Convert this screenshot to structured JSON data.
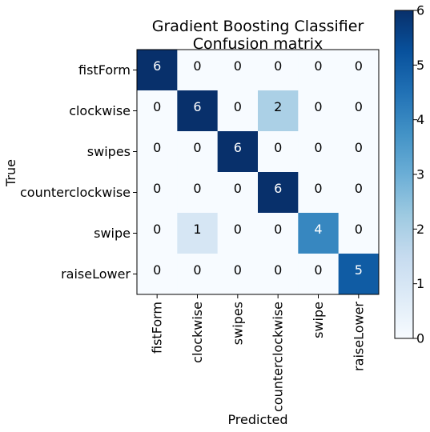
{
  "chart_data": {
    "type": "heatmap",
    "title": "Gradient Boosting Classifier",
    "subtitle": "Confusion matrix",
    "xlabel": "Predicted",
    "ylabel": "True",
    "x_categories": [
      "fistForm",
      "clockwise",
      "swipes",
      "counterclockwise",
      "swipe",
      "raiseLower"
    ],
    "y_categories": [
      "fistForm",
      "clockwise",
      "swipes",
      "counterclockwise",
      "swipe",
      "raiseLower"
    ],
    "values": [
      [
        6,
        0,
        0,
        0,
        0,
        0
      ],
      [
        0,
        6,
        0,
        2,
        0,
        0
      ],
      [
        0,
        0,
        6,
        0,
        0,
        0
      ],
      [
        0,
        0,
        0,
        6,
        0,
        0
      ],
      [
        0,
        1,
        0,
        0,
        4,
        0
      ],
      [
        0,
        0,
        0,
        0,
        0,
        5
      ]
    ],
    "colorscale": "Blues",
    "colorbar": {
      "range": [
        0,
        6
      ],
      "ticks": [
        "0",
        "1",
        "2",
        "3",
        "4",
        "5",
        "6"
      ]
    },
    "grid": false
  }
}
